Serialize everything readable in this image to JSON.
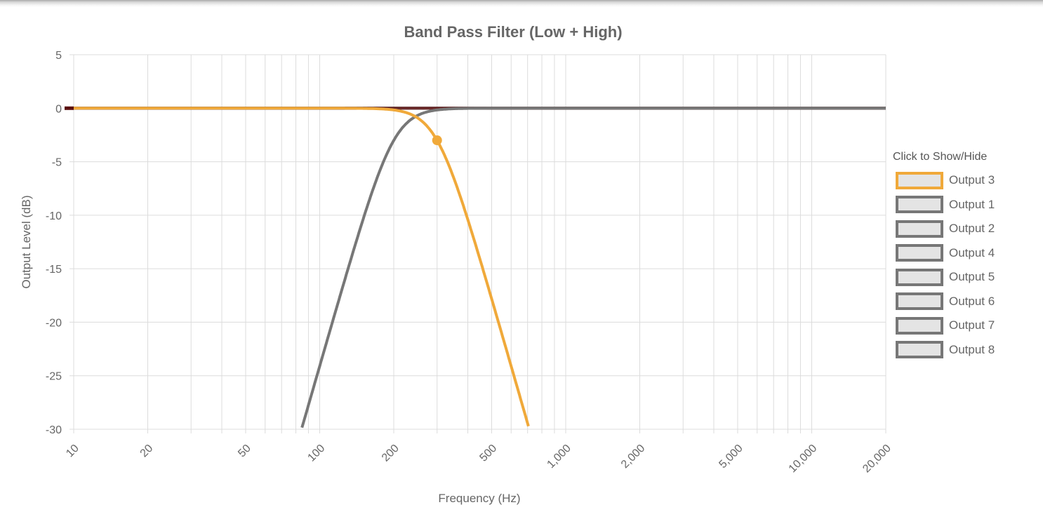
{
  "chart_data": {
    "type": "line",
    "title": "Band Pass Filter (Low + High)",
    "xlabel": "Frequency (Hz)",
    "ylabel": "Output Level (dB)",
    "x_scale": "log",
    "xlim": [
      10,
      20000
    ],
    "ylim": [
      -30,
      5
    ],
    "x_tick_labels": [
      "10",
      "20",
      "50",
      "100",
      "200",
      "500",
      "1,000",
      "2,000",
      "5,000",
      "10,000",
      "20,000"
    ],
    "x_ticks": [
      10,
      20,
      50,
      100,
      200,
      500,
      1000,
      2000,
      5000,
      10000,
      20000
    ],
    "y_ticks": [
      5,
      0,
      -5,
      -10,
      -15,
      -20,
      -25,
      -30
    ],
    "y_tick_labels": [
      "5",
      "0",
      "-5",
      "-10",
      "-15",
      "-20",
      "-25",
      "-30"
    ],
    "grid": true,
    "series": [
      {
        "name": "Output 3",
        "filter": "low-pass",
        "cutoff_hz": 300,
        "order": 4,
        "color": "#f0a93a",
        "marker": {
          "x": 300,
          "y": -3
        }
      },
      {
        "name": "Output 1",
        "filter": "high-pass",
        "cutoff_hz": 200,
        "order": 4,
        "color": "#777777"
      },
      {
        "name": "Output 2",
        "filter": "flat",
        "color": "#777777"
      },
      {
        "name": "Output 4",
        "filter": "flat",
        "color": "#777777"
      },
      {
        "name": "Output 5",
        "filter": "flat",
        "color": "#777777"
      },
      {
        "name": "Output 6",
        "filter": "flat",
        "color": "#777777"
      },
      {
        "name": "Output 7",
        "filter": "flat",
        "color": "#777777"
      },
      {
        "name": "Output 8",
        "filter": "flat",
        "color": "#6a2a2a"
      }
    ]
  },
  "legend": {
    "title": "Click to Show/Hide",
    "items": [
      "Output 3",
      "Output 1",
      "Output 2",
      "Output 4",
      "Output 5",
      "Output 6",
      "Output 7",
      "Output 8"
    ],
    "highlight_color": "#f0a93a",
    "default_color": "#777777"
  }
}
